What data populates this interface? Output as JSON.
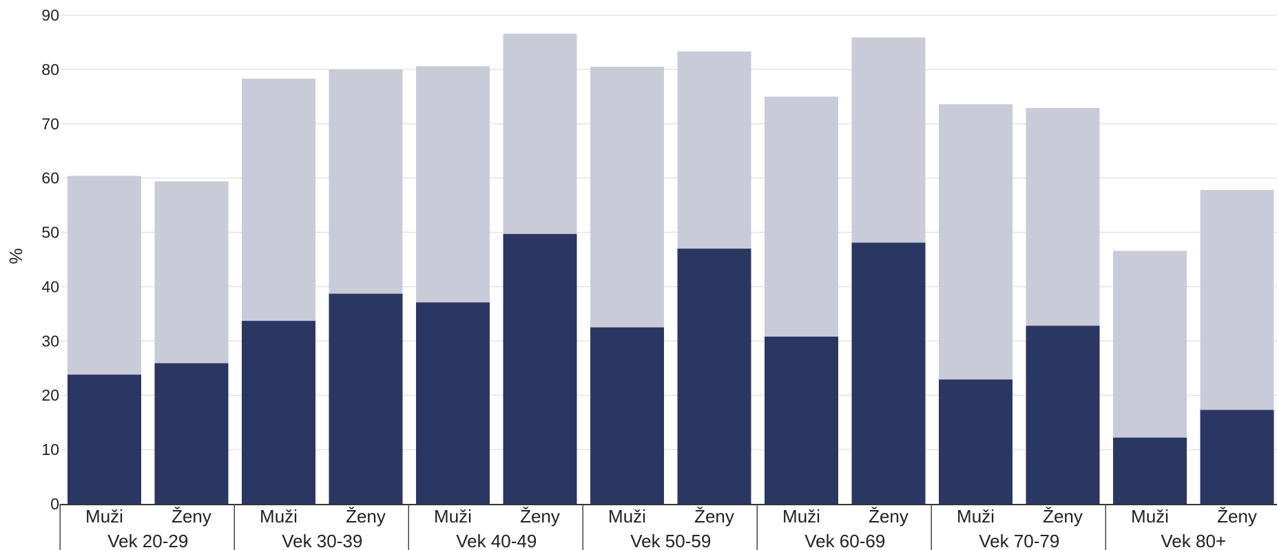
{
  "chart_data": {
    "type": "bar",
    "stacking": "overlay",
    "ylabel": "%",
    "xlabel": "",
    "ylim": [
      0,
      90
    ],
    "yticks": [
      0,
      10,
      20,
      30,
      40,
      50,
      60,
      70,
      80,
      90
    ],
    "grid": true,
    "groups": [
      "Vek 20-29",
      "Vek 30-39",
      "Vek 40-49",
      "Vek 50-59",
      "Vek 60-69",
      "Vek 70-79",
      "Vek 80+"
    ],
    "subcategories": [
      "Muži",
      "Ženy"
    ],
    "series": [
      {
        "values": [
          60.4,
          59.4,
          78.3,
          80.0,
          80.6,
          86.6,
          80.5,
          83.3,
          75.0,
          85.9,
          73.6,
          72.9,
          46.6,
          57.8
        ],
        "color": "#c9cbd8"
      },
      {
        "values": [
          23.8,
          25.9,
          33.7,
          38.7,
          37.1,
          49.7,
          32.5,
          47.0,
          30.8,
          48.1,
          22.9,
          32.8,
          12.2,
          17.3
        ],
        "color": "#2b3763"
      }
    ]
  }
}
